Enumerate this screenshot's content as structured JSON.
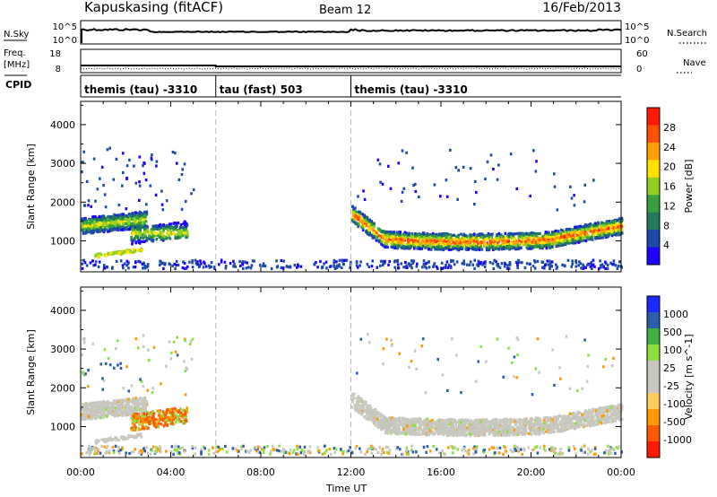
{
  "header": {
    "station": "Kapuskasing (fitACF)",
    "beam": "Beam 12",
    "date": "16/Feb/2013"
  },
  "nsky_panel": {
    "left_label": "N.Sky",
    "left_top_tick": "10^5",
    "left_bottom_tick": "10^0",
    "right_label": "N.Search",
    "right_top_tick": "10^5",
    "right_bottom_tick": "10^0"
  },
  "freq_panel": {
    "left_label_line1": "Freq.",
    "left_label_line2": "[MHz]",
    "left_top_tick": "18",
    "left_bottom_tick": "8",
    "right_label": "Nave",
    "right_top_tick": "60",
    "right_bottom_tick": "0"
  },
  "cpid": {
    "label": "CPID",
    "segments": [
      {
        "text": "themis (tau) -3310",
        "start_hour": 0
      },
      {
        "text": "tau (fast) 503",
        "start_hour": 6
      },
      {
        "text": "themis (tau) -3310",
        "start_hour": 12
      }
    ]
  },
  "x_axis": {
    "label": "Time UT",
    "ticks": [
      "00:00",
      "04:00",
      "08:00",
      "12:00",
      "16:00",
      "20:00",
      "00:00"
    ],
    "range_hours": [
      0,
      24
    ]
  },
  "colors": {
    "power": [
      "#1e00ff",
      "#1c4aa8",
      "#227a5a",
      "#36a03c",
      "#90d020",
      "#ffe000",
      "#ffa000",
      "#ff5000",
      "#ff1a00"
    ],
    "velocity": [
      "#ff1a00",
      "#ff5a00",
      "#ff9a00",
      "#ffcc60",
      "#c8c8c0",
      "#c8c8c0",
      "#8ee040",
      "#40b040",
      "#2a5ea8",
      "#1a2aff"
    ]
  },
  "chart_data": [
    {
      "type": "heatmap",
      "title": "",
      "ylabel": "Slant Range [km]",
      "xlabel": "",
      "xlim": [
        0,
        24
      ],
      "ylim": [
        200,
        4600
      ],
      "yticks": [
        "1000",
        "2000",
        "3000",
        "4000"
      ],
      "colorbar": {
        "label": "Power [dB]",
        "ticks": [
          "4",
          "8",
          "12",
          "16",
          "20",
          "24",
          "28"
        ],
        "range": [
          0,
          30
        ]
      },
      "features": [
        {
          "hours": [
            0.0,
            2.9
          ],
          "range_km": [
            1150,
            1950
          ],
          "power_db": [
            4,
            20
          ]
        },
        {
          "hours": [
            2.2,
            4.7
          ],
          "range_km": [
            850,
            1450
          ],
          "power_db": [
            4,
            18
          ]
        },
        {
          "hours": [
            12.0,
            24.0
          ],
          "range_km": [
            850,
            1800
          ],
          "power_db": [
            4,
            28
          ]
        },
        {
          "hours": [
            0.0,
            24.0
          ],
          "range_km": [
            250,
            450
          ],
          "power_db": [
            4,
            8
          ]
        }
      ]
    },
    {
      "type": "heatmap",
      "title": "",
      "ylabel": "Slant Range [km]",
      "xlabel": "Time UT",
      "xlim": [
        0,
        24
      ],
      "ylim": [
        200,
        4600
      ],
      "yticks": [
        "1000",
        "2000",
        "3000",
        "4000"
      ],
      "colorbar": {
        "label": "Velocity [m s^-1]",
        "ticks": [
          "1000",
          "500",
          "100",
          "25",
          "-25",
          "-100",
          "-500",
          "-1000"
        ],
        "range": [
          -1200,
          1200
        ]
      },
      "features": [
        {
          "hours": [
            0.0,
            2.9
          ],
          "range_km": [
            1150,
            1950
          ],
          "velocity_ms": [
            -25,
            25
          ]
        },
        {
          "hours": [
            2.2,
            4.7
          ],
          "range_km": [
            1000,
            1550
          ],
          "velocity_ms": [
            -500,
            -100
          ]
        },
        {
          "hours": [
            12.0,
            24.0
          ],
          "range_km": [
            850,
            1800
          ],
          "velocity_ms": [
            -25,
            25
          ]
        },
        {
          "hours": [
            0.0,
            24.0
          ],
          "range_km": [
            250,
            450
          ],
          "velocity_ms": [
            -100,
            100
          ]
        }
      ]
    }
  ]
}
